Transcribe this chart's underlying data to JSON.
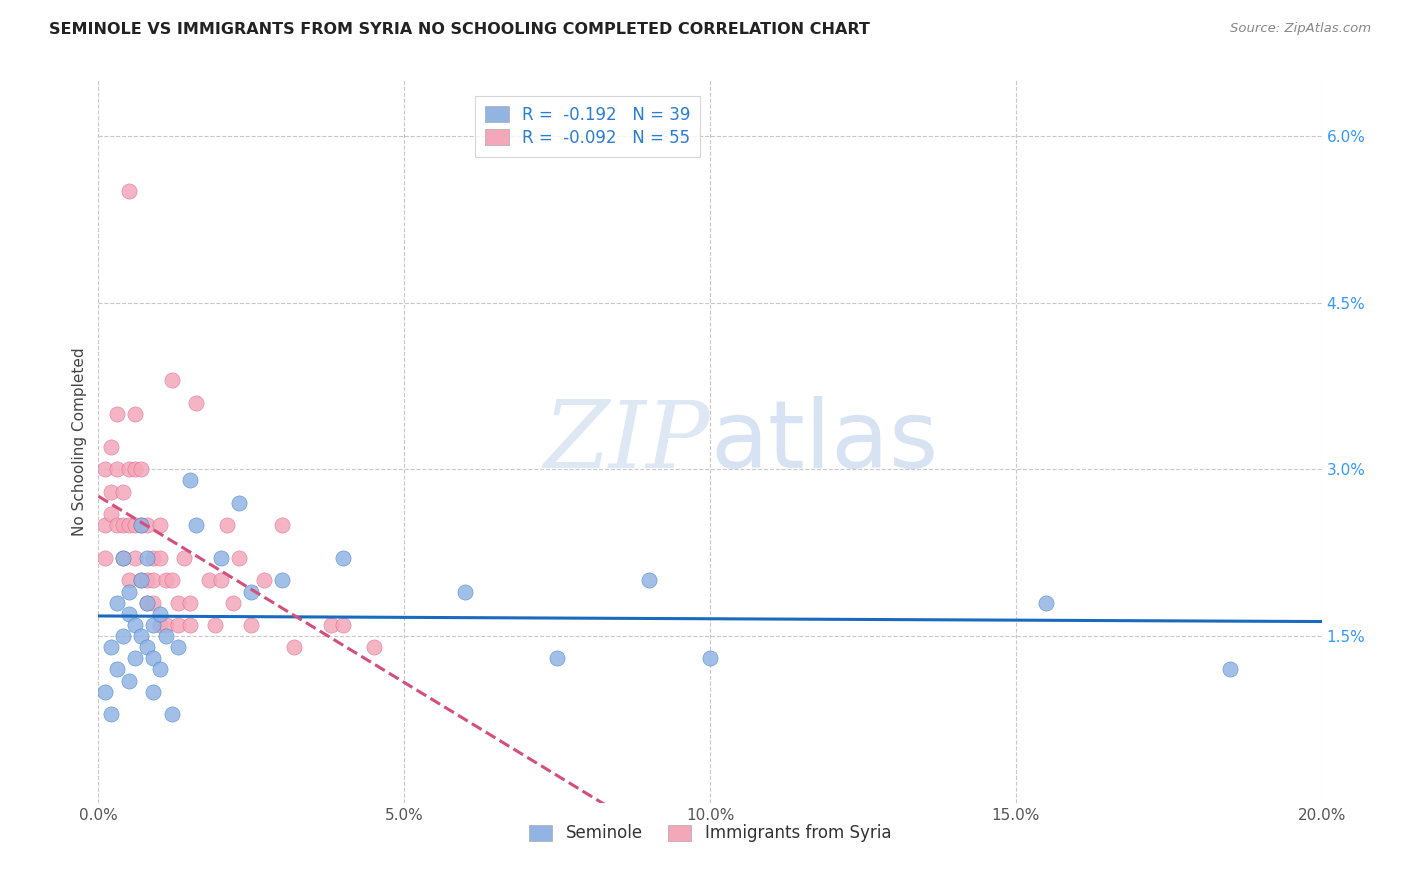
{
  "title": "SEMINOLE VS IMMIGRANTS FROM SYRIA NO SCHOOLING COMPLETED CORRELATION CHART",
  "source": "Source: ZipAtlas.com",
  "ylabel": "No Schooling Completed",
  "xlim": [
    0.0,
    0.2
  ],
  "ylim": [
    0.0,
    0.065
  ],
  "yticks": [
    0.0,
    0.015,
    0.03,
    0.045,
    0.06
  ],
  "ytick_labels": [
    "",
    "1.5%",
    "3.0%",
    "4.5%",
    "6.0%"
  ],
  "xticks": [
    0.0,
    0.05,
    0.1,
    0.15,
    0.2
  ],
  "xtick_labels": [
    "0.0%",
    "5.0%",
    "10.0%",
    "15.0%",
    "20.0%"
  ],
  "seminole_R": -0.192,
  "seminole_N": 39,
  "syria_R": -0.092,
  "syria_N": 55,
  "seminole_color": "#92b4e3",
  "syria_color": "#f4a7b9",
  "seminole_line_color": "#1a6bbf",
  "syria_line_color": "#d44f7c",
  "background_color": "#ffffff",
  "grid_color": "#c8c8c8",
  "watermark_zip": "ZIP",
  "watermark_atlas": "atlas",
  "legend_text_color": "#2a7dd4",
  "seminole_x": [
    0.001,
    0.002,
    0.002,
    0.003,
    0.003,
    0.004,
    0.004,
    0.005,
    0.005,
    0.005,
    0.006,
    0.006,
    0.007,
    0.007,
    0.007,
    0.008,
    0.008,
    0.008,
    0.009,
    0.009,
    0.009,
    0.01,
    0.01,
    0.011,
    0.012,
    0.013,
    0.015,
    0.016,
    0.02,
    0.023,
    0.025,
    0.03,
    0.04,
    0.06,
    0.075,
    0.09,
    0.1,
    0.155,
    0.185
  ],
  "seminole_y": [
    0.01,
    0.008,
    0.014,
    0.012,
    0.018,
    0.015,
    0.022,
    0.019,
    0.017,
    0.011,
    0.016,
    0.013,
    0.025,
    0.02,
    0.015,
    0.022,
    0.018,
    0.014,
    0.016,
    0.013,
    0.01,
    0.017,
    0.012,
    0.015,
    0.008,
    0.014,
    0.029,
    0.025,
    0.022,
    0.027,
    0.019,
    0.02,
    0.022,
    0.019,
    0.013,
    0.02,
    0.013,
    0.018,
    0.012
  ],
  "syria_x": [
    0.001,
    0.001,
    0.001,
    0.002,
    0.002,
    0.002,
    0.003,
    0.003,
    0.003,
    0.004,
    0.004,
    0.004,
    0.005,
    0.005,
    0.005,
    0.005,
    0.006,
    0.006,
    0.006,
    0.006,
    0.007,
    0.007,
    0.007,
    0.008,
    0.008,
    0.008,
    0.009,
    0.009,
    0.009,
    0.01,
    0.01,
    0.01,
    0.011,
    0.011,
    0.012,
    0.012,
    0.013,
    0.013,
    0.014,
    0.015,
    0.015,
    0.016,
    0.018,
    0.019,
    0.02,
    0.021,
    0.022,
    0.023,
    0.025,
    0.027,
    0.03,
    0.032,
    0.038,
    0.04,
    0.045
  ],
  "syria_y": [
    0.022,
    0.025,
    0.03,
    0.026,
    0.028,
    0.032,
    0.025,
    0.03,
    0.035,
    0.028,
    0.025,
    0.022,
    0.02,
    0.025,
    0.03,
    0.055,
    0.022,
    0.025,
    0.03,
    0.035,
    0.02,
    0.025,
    0.03,
    0.02,
    0.025,
    0.018,
    0.02,
    0.022,
    0.018,
    0.022,
    0.016,
    0.025,
    0.02,
    0.016,
    0.02,
    0.038,
    0.018,
    0.016,
    0.022,
    0.018,
    0.016,
    0.036,
    0.02,
    0.016,
    0.02,
    0.025,
    0.018,
    0.022,
    0.016,
    0.02,
    0.025,
    0.014,
    0.016,
    0.016,
    0.014
  ]
}
